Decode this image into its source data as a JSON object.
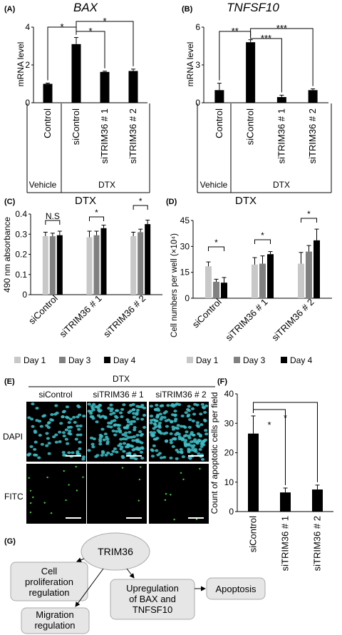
{
  "panels": {
    "A": {
      "tag": "(A)",
      "title": "BAX"
    },
    "B": {
      "tag": "(B)",
      "title": "TNFSF10"
    },
    "C": {
      "tag": "(C)",
      "title": "DTX"
    },
    "D": {
      "tag": "(D)",
      "title": "DTX"
    },
    "E": {
      "tag": "(E)",
      "title": "DTX",
      "columns": [
        "siControl",
        "siTRIM36 # 1",
        "siTRIM36 # 2"
      ],
      "rows": [
        "DAPI",
        "FITC"
      ]
    },
    "F": {
      "tag": "(F)"
    },
    "G": {
      "tag": "(G)"
    }
  },
  "treatment_labels": {
    "vehicle": "Vehicle",
    "dtx": "DTX"
  },
  "legend": [
    "Day 1",
    "Day 3",
    "Day 4"
  ],
  "colors": {
    "day1": "#c8c8c8",
    "day3": "#808080",
    "day4": "#000000",
    "bar": "#000000",
    "cell": "#3fc0c8",
    "fitc_dot": "#3fd040",
    "pathway_box": "#e6e6e6"
  },
  "chart_data": [
    {
      "panel": "A",
      "type": "bar",
      "title": "BAX",
      "ylabel": "mRNA level",
      "ylim": [
        0,
        4
      ],
      "yticks": [
        0,
        2,
        4
      ],
      "categories": [
        "Control",
        "siControl",
        "siTRIM36 # 1",
        "siTRIM36 # 2"
      ],
      "values": [
        1.0,
        3.1,
        1.63,
        1.68
      ],
      "errors": [
        0.04,
        0.35,
        0.04,
        0.1
      ],
      "significance": [
        {
          "from": 0,
          "to": 1,
          "label": "*"
        },
        {
          "from": 1,
          "to": 2,
          "label": "*"
        },
        {
          "from": 1,
          "to": 3,
          "label": "*"
        }
      ]
    },
    {
      "panel": "B",
      "type": "bar",
      "title": "TNFSF10",
      "ylabel": "mRNA level",
      "ylim": [
        0,
        6
      ],
      "yticks": [
        0,
        3,
        6
      ],
      "categories": [
        "Control",
        "siControl",
        "siTRIM36 # 1",
        "siTRIM36 # 2"
      ],
      "values": [
        1.0,
        4.8,
        0.45,
        1.0
      ],
      "errors": [
        0.55,
        0.2,
        0.15,
        0.1
      ],
      "significance": [
        {
          "from": 0,
          "to": 1,
          "label": "**"
        },
        {
          "from": 1,
          "to": 2,
          "label": "***"
        },
        {
          "from": 1,
          "to": 3,
          "label": "***"
        }
      ]
    },
    {
      "panel": "C",
      "type": "bar",
      "title": "DTX",
      "ylabel": "490 nm absorbance",
      "ylim": [
        0,
        0.4
      ],
      "yticks": [
        0,
        0.1,
        0.2,
        0.3,
        0.4
      ],
      "categories": [
        "siControl",
        "siTRIM36 # 1",
        "siTRIM36 # 2"
      ],
      "series": [
        {
          "name": "Day 1",
          "values": [
            0.29,
            0.285,
            0.29
          ],
          "errors": [
            0.02,
            0.03,
            0.02
          ]
        },
        {
          "name": "Day 3",
          "values": [
            0.29,
            0.295,
            0.31
          ],
          "errors": [
            0.015,
            0.02,
            0.015
          ]
        },
        {
          "name": "Day 4",
          "values": [
            0.295,
            0.33,
            0.35
          ],
          "errors": [
            0.02,
            0.015,
            0.02
          ]
        }
      ],
      "significance": [
        {
          "group": 0,
          "label": "N.S"
        },
        {
          "group": 1,
          "label": "*"
        },
        {
          "group": 2,
          "label": "*"
        }
      ]
    },
    {
      "panel": "D",
      "type": "bar",
      "title": "DTX",
      "ylabel": "Cell numbers per well (×10⁴)",
      "ylim": [
        0,
        45
      ],
      "yticks": [
        0,
        15,
        30,
        45
      ],
      "categories": [
        "siControl",
        "siTRIM36 # 1",
        "siTRIM36 # 2"
      ],
      "series": [
        {
          "name": "Day 1",
          "values": [
            18.5,
            19.5,
            20.0
          ],
          "errors": [
            2.5,
            4.0,
            6.5
          ]
        },
        {
          "name": "Day 3",
          "values": [
            9.5,
            20.0,
            27.0
          ],
          "errors": [
            1.5,
            4.5,
            3.5
          ]
        },
        {
          "name": "Day 4",
          "values": [
            9.0,
            25.5,
            33.5
          ],
          "errors": [
            3.0,
            1.5,
            6.5
          ]
        }
      ],
      "significance": [
        {
          "group": 0,
          "label": "*"
        },
        {
          "group": 1,
          "label": "*"
        },
        {
          "group": 2,
          "label": "*"
        }
      ]
    },
    {
      "panel": "F",
      "type": "bar",
      "ylabel": "Count of apoptotic cells per field",
      "ylim": [
        0,
        40
      ],
      "yticks": [
        0,
        10,
        20,
        30,
        40
      ],
      "categories": [
        "siControl",
        "siTRIM36 # 1",
        "siTRIM36 # 2"
      ],
      "values": [
        26.5,
        6.5,
        7.5
      ],
      "errors": [
        6.0,
        1.5,
        1.5
      ],
      "significance": [
        {
          "from": 0,
          "to": 1,
          "label": "*"
        },
        {
          "from": 0,
          "to": 2,
          "label": "*"
        }
      ]
    }
  ],
  "pathway": {
    "center": "TRIM36",
    "nodes": {
      "proliferation": [
        "Cell",
        "proliferation",
        "regulation"
      ],
      "migration": [
        "Migration",
        "regulation"
      ],
      "upregulation": [
        "Upregulation",
        "of BAX and",
        "TNFSF10"
      ],
      "apoptosis": "Apoptosis"
    }
  }
}
